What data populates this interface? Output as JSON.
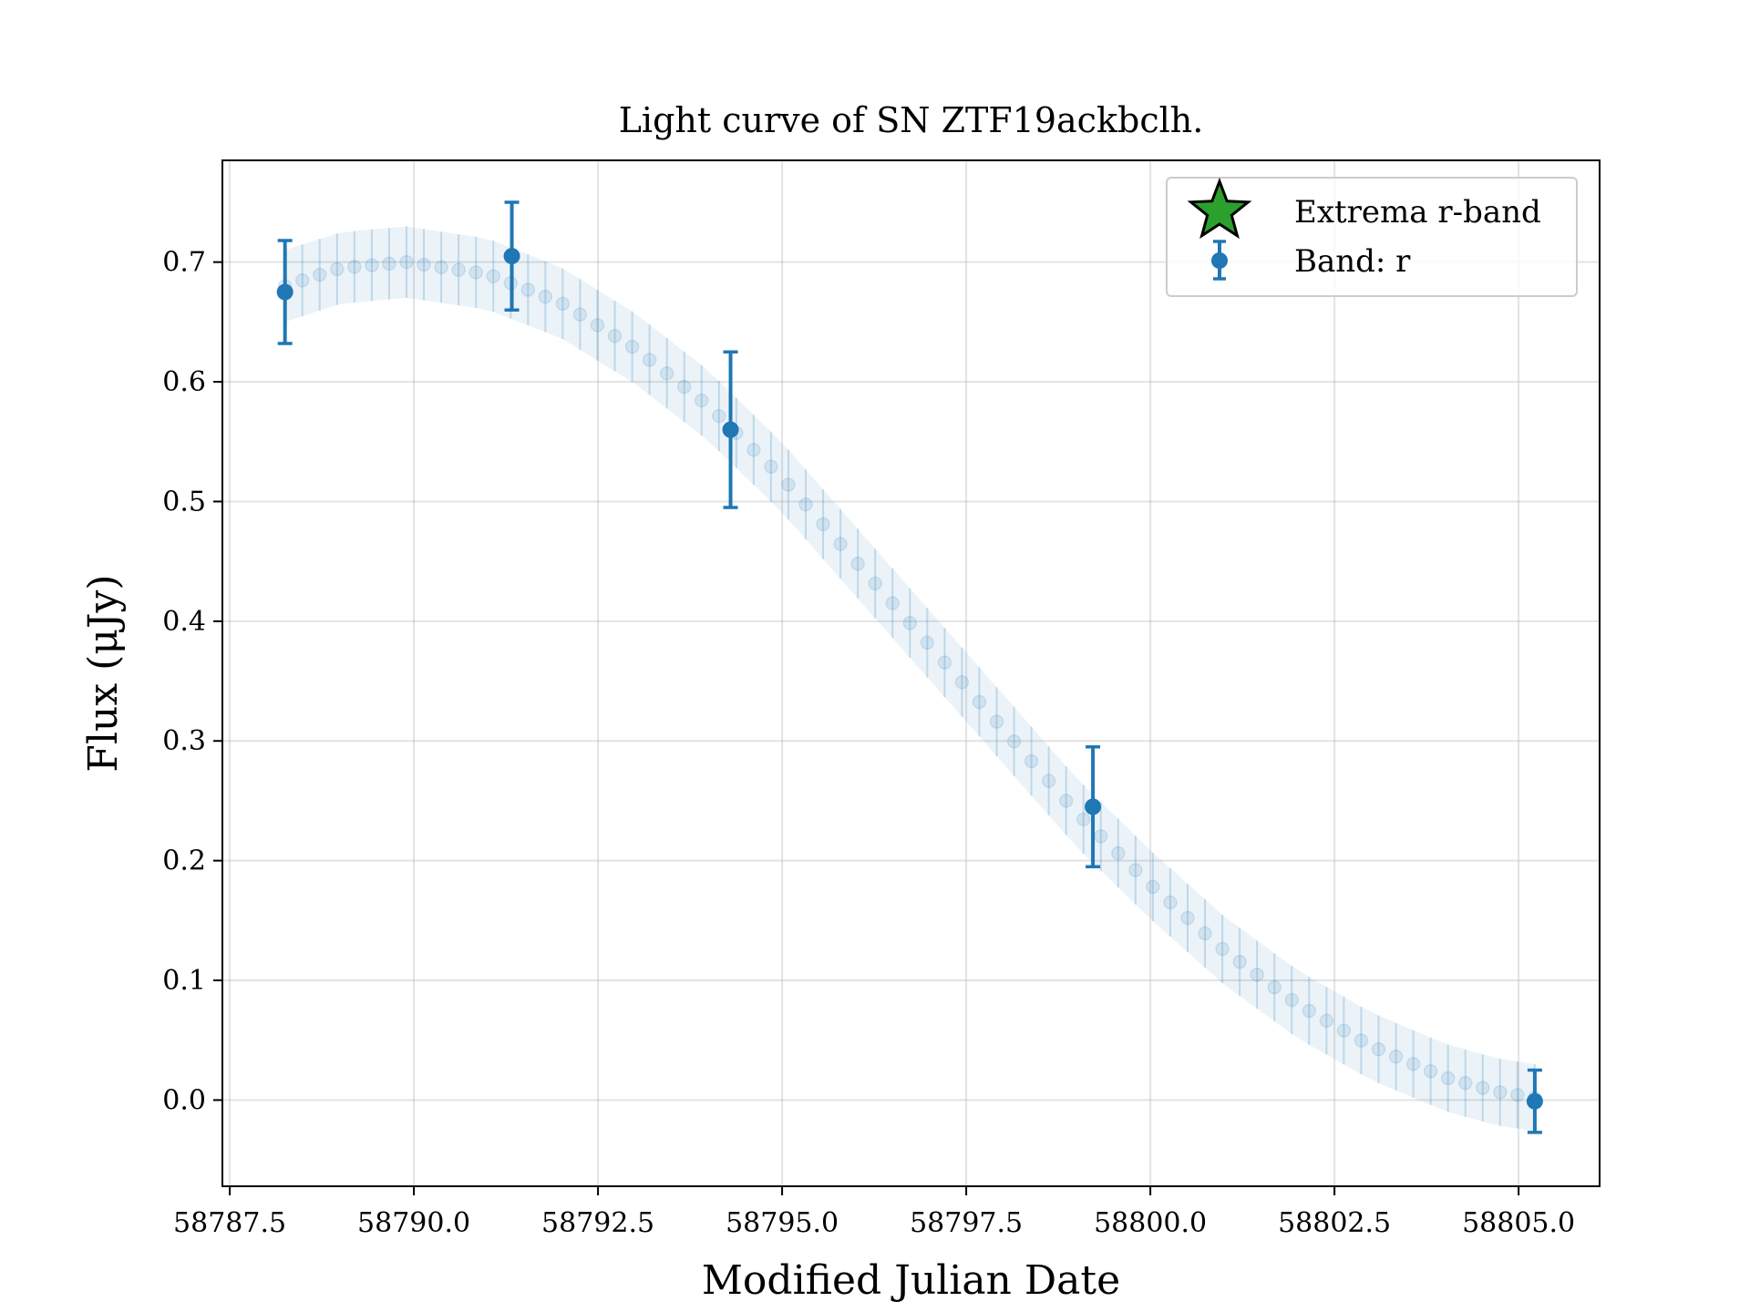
{
  "chart_data": {
    "type": "scatter",
    "title": "Light curve of SN ZTF19ackbclh.",
    "xlabel": "Modified Julian Date",
    "ylabel": "Flux (μJy)",
    "xlim": [
      58787.4,
      58806.1
    ],
    "ylim": [
      -0.072,
      0.785
    ],
    "xticks": [
      58787.5,
      58790.0,
      58792.5,
      58795.0,
      58797.5,
      58800.0,
      58802.5,
      58805.0
    ],
    "xtick_labels": [
      "58787.5",
      "58790.0",
      "58792.5",
      "58795.0",
      "58797.5",
      "58800.0",
      "58802.5",
      "58805.0"
    ],
    "yticks": [
      0.0,
      0.1,
      0.2,
      0.3,
      0.4,
      0.5,
      0.6,
      0.7
    ],
    "ytick_labels": [
      "0.0",
      "0.1",
      "0.2",
      "0.3",
      "0.4",
      "0.5",
      "0.6",
      "0.7"
    ],
    "grid": true,
    "legend_position": "top-right",
    "legend": [
      {
        "label": "Extrema r-band",
        "marker": "star",
        "color": "#2ca02c"
      },
      {
        "label": "Band: r",
        "marker": "errorbar-circle",
        "color": "#1f77b4"
      }
    ],
    "series": [
      {
        "name": "Band: r",
        "color": "#1f77b4",
        "x": [
          58788.25,
          58791.33,
          58794.3,
          58799.22,
          58805.22
        ],
        "y": [
          0.675,
          0.705,
          0.56,
          0.245,
          -0.001
        ],
        "yerr": [
          0.043,
          0.045,
          0.065,
          0.05,
          0.026
        ]
      }
    ],
    "model_band": {
      "color": "#1f77b4",
      "start": 58788.25,
      "end": 58805.22,
      "halfwidth_start": 0.03,
      "halfwidth_end": 0.028,
      "curve_x": [
        58788.25,
        58789.0,
        58789.9,
        58791.0,
        58792.0,
        58793.0,
        58794.0,
        58795.0,
        58796.0,
        58797.0,
        58798.0,
        58799.0,
        58800.0,
        58801.0,
        58802.0,
        58803.0,
        58804.0,
        58804.7,
        58805.22
      ],
      "curve_y": [
        0.68,
        0.695,
        0.7,
        0.69,
        0.666,
        0.628,
        0.58,
        0.52,
        0.45,
        0.38,
        0.31,
        0.24,
        0.18,
        0.125,
        0.08,
        0.045,
        0.019,
        0.007,
        0.002
      ]
    }
  }
}
